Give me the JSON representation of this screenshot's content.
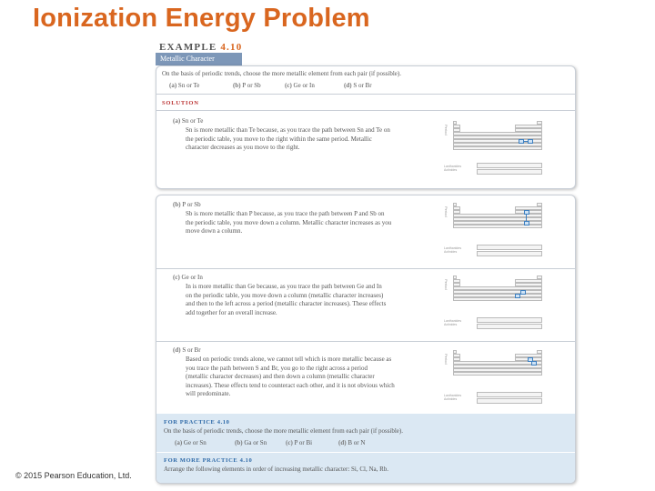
{
  "slide": {
    "title": "Ionization Energy Problem",
    "copyright": "© 2015 Pearson Education, Ltd."
  },
  "example": {
    "label": "EXAMPLE",
    "number": "4.10",
    "subtitle": "Metallic Character",
    "question": "On the basis of periodic trends, choose the more metallic element from each pair (if possible).",
    "choices": [
      {
        "label": "(a)",
        "text": "Sn or Te"
      },
      {
        "label": "(b)",
        "text": "P or Sb"
      },
      {
        "label": "(c)",
        "text": "Ge or In"
      },
      {
        "label": "(d)",
        "text": "S or Br"
      }
    ],
    "solution_label": "SOLUTION",
    "parts": [
      {
        "label": "(a)",
        "pair": "Sn or Te",
        "lines": [
          "Sn is more metallic than Te because, as you trace the path between Sn and Te on",
          "the periodic table, you move to the right within the same period. Metallic",
          "character decreases as you move to the right."
        ]
      },
      {
        "label": "(b)",
        "pair": "P or Sb",
        "lines": [
          "Sb is more metallic than P because, as you trace the path between P and Sb on",
          "the periodic table, you move down a column. Metallic character increases as you",
          "move down a column."
        ]
      },
      {
        "label": "(c)",
        "pair": "Ge or In",
        "lines": [
          "In is more metallic than Ge because, as you trace the path between Ge and In",
          "on the periodic table, you move down a column (metallic character increases)",
          "and then to the left across a period (metallic character increases). These effects",
          "add together for an overall increase."
        ]
      },
      {
        "label": "(d)",
        "pair": "S or Br",
        "lines": [
          "Based on periodic trends alone, we cannot tell which is more metallic because as",
          "you trace the path between S and Br, you go to the right across a period",
          "(metallic character decreases) and then down a column (metallic character",
          "increases). These effects tend to counteract each other, and it is not obvious which",
          "will predominate."
        ]
      }
    ],
    "periodic_table": {
      "side_label": "Period",
      "lanthanides": "Lanthanides",
      "actinides": "Actinides"
    }
  },
  "practice": {
    "heading": "FOR PRACTICE 4.10",
    "question": "On the basis of periodic trends, choose the more metallic element from each pair (if possible).",
    "choices": [
      {
        "label": "(a)",
        "text": "Ge or Sn"
      },
      {
        "label": "(b)",
        "text": "Ga or Sn"
      },
      {
        "label": "(c)",
        "text": "P or Bi"
      },
      {
        "label": "(d)",
        "text": "B or N"
      }
    ]
  },
  "more_practice": {
    "heading": "FOR MORE PRACTICE 4.10",
    "text": "Arrange the following elements in order of increasing metallic character: Si, Cl, Na, Rb."
  }
}
